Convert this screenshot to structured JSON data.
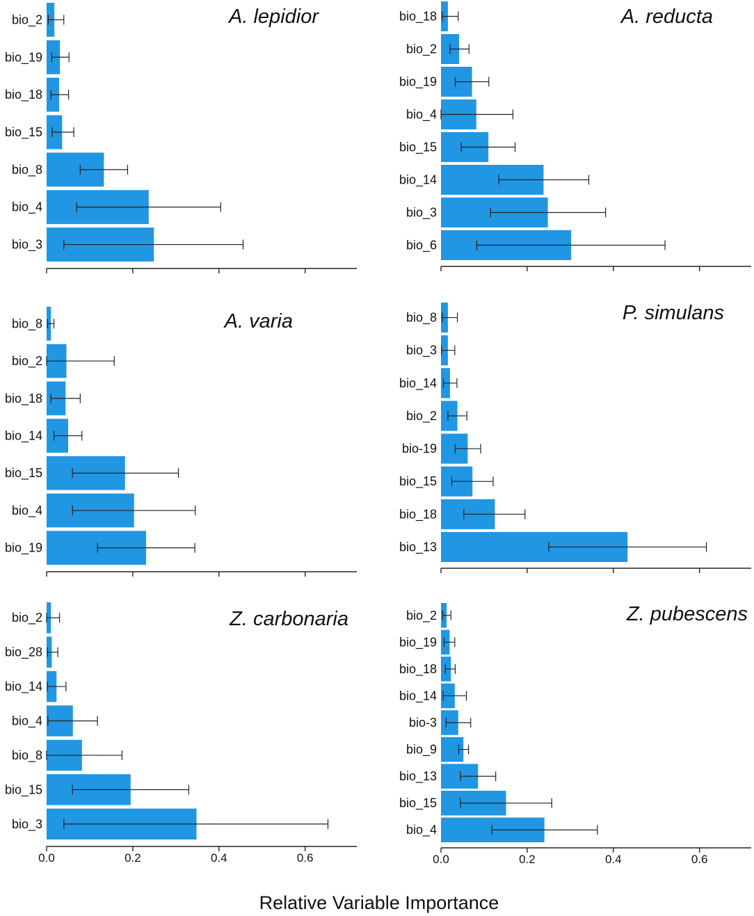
{
  "figure": {
    "xlabel": "Relative Variable Importance",
    "bar_color": "#2196e3",
    "error_color": "#222222",
    "axis_color": "#222222"
  },
  "chart_data": [
    {
      "type": "bar",
      "orientation": "horizontal",
      "title": "A. lepidior",
      "categories": [
        "bio_2",
        "bio_19",
        "bio_18",
        "bio_15",
        "bio_8",
        "bio_4",
        "bio_3"
      ],
      "values": [
        0.018,
        0.031,
        0.029,
        0.036,
        0.133,
        0.237,
        0.249
      ],
      "error_low": [
        0.004,
        0.012,
        0.01,
        0.013,
        0.078,
        0.07,
        0.04
      ],
      "error_high": [
        0.04,
        0.052,
        0.051,
        0.063,
        0.188,
        0.404,
        0.456
      ],
      "xlim": [
        0,
        0.72
      ],
      "xticks": [
        0.0,
        0.2,
        0.4,
        0.6
      ],
      "xtick_labels": [],
      "ylabel": ""
    },
    {
      "type": "bar",
      "orientation": "horizontal",
      "title": "A. reducta",
      "categories": [
        "bio_18",
        "bio_2",
        "bio_19",
        "bio_4",
        "bio_15",
        "bio_14",
        "bio_3",
        "bio_6"
      ],
      "values": [
        0.016,
        0.042,
        0.072,
        0.082,
        0.11,
        0.238,
        0.248,
        0.302
      ],
      "error_low": [
        0.003,
        0.021,
        0.033,
        0.0,
        0.047,
        0.134,
        0.115,
        0.083
      ],
      "error_high": [
        0.04,
        0.065,
        0.111,
        0.167,
        0.172,
        0.343,
        0.382,
        0.52
      ],
      "xlim": [
        0,
        0.72
      ],
      "xticks": [
        0.0,
        0.2,
        0.4,
        0.6
      ],
      "xtick_labels": [],
      "ylabel": ""
    },
    {
      "type": "bar",
      "orientation": "horizontal",
      "title": "A. varia",
      "categories": [
        "bio_8",
        "bio_2",
        "bio_18",
        "bio_14",
        "bio_15",
        "bio_4",
        "bio_19"
      ],
      "values": [
        0.01,
        0.046,
        0.044,
        0.05,
        0.182,
        0.203,
        0.231
      ],
      "error_low": [
        0.002,
        0.0,
        0.01,
        0.017,
        0.06,
        0.06,
        0.118
      ],
      "error_high": [
        0.017,
        0.157,
        0.078,
        0.082,
        0.306,
        0.345,
        0.344
      ],
      "xlim": [
        0,
        0.72
      ],
      "xticks": [
        0.0,
        0.2,
        0.4,
        0.6
      ],
      "xtick_labels": [],
      "ylabel": ""
    },
    {
      "type": "bar",
      "orientation": "horizontal",
      "title": "P. simulans",
      "categories": [
        "bio_8",
        "bio_3",
        "bio_14",
        "bio_2",
        "bio-19",
        "bio_15",
        "bio_18",
        "bio_13"
      ],
      "values": [
        0.016,
        0.016,
        0.021,
        0.038,
        0.062,
        0.073,
        0.125,
        0.433
      ],
      "error_low": [
        0.003,
        0.001,
        0.006,
        0.016,
        0.033,
        0.025,
        0.053,
        0.25
      ],
      "error_high": [
        0.038,
        0.032,
        0.037,
        0.06,
        0.092,
        0.121,
        0.195,
        0.616
      ],
      "xlim": [
        0,
        0.72
      ],
      "xticks": [
        0.0,
        0.2,
        0.4,
        0.6
      ],
      "xtick_labels": [],
      "ylabel": ""
    },
    {
      "type": "bar",
      "orientation": "horizontal",
      "title": "Z. carbonaria",
      "categories": [
        "bio_2",
        "bio_28",
        "bio_14",
        "bio_4",
        "bio_8",
        "bio_15",
        "bio_3"
      ],
      "values": [
        0.01,
        0.012,
        0.023,
        0.061,
        0.082,
        0.195,
        0.348
      ],
      "error_low": [
        0.0,
        0.002,
        0.002,
        0.003,
        0.0,
        0.06,
        0.04
      ],
      "error_high": [
        0.03,
        0.026,
        0.045,
        0.118,
        0.175,
        0.33,
        0.653
      ],
      "xlim": [
        0,
        0.72
      ],
      "xticks": [
        0.0,
        0.2,
        0.4,
        0.6
      ],
      "xtick_labels": [
        "0.0",
        "0.2",
        "0.4",
        "0.6"
      ],
      "ylabel": ""
    },
    {
      "type": "bar",
      "orientation": "horizontal",
      "title": "Z. pubescens",
      "categories": [
        "bio_2",
        "bio_19",
        "bio_18",
        "bio_14",
        "bio-3",
        "bio_9",
        "bio_13",
        "bio_15",
        "bio_4"
      ],
      "values": [
        0.013,
        0.02,
        0.023,
        0.032,
        0.04,
        0.052,
        0.086,
        0.151,
        0.24
      ],
      "error_low": [
        0.004,
        0.007,
        0.01,
        0.005,
        0.012,
        0.041,
        0.045,
        0.045,
        0.118
      ],
      "error_high": [
        0.023,
        0.032,
        0.033,
        0.059,
        0.069,
        0.064,
        0.127,
        0.257,
        0.363
      ],
      "xlim": [
        0,
        0.72
      ],
      "xticks": [
        0.0,
        0.2,
        0.4,
        0.6
      ],
      "xtick_labels": [
        "0.0",
        "0.2",
        "0.4",
        "0.6"
      ],
      "ylabel": ""
    }
  ]
}
